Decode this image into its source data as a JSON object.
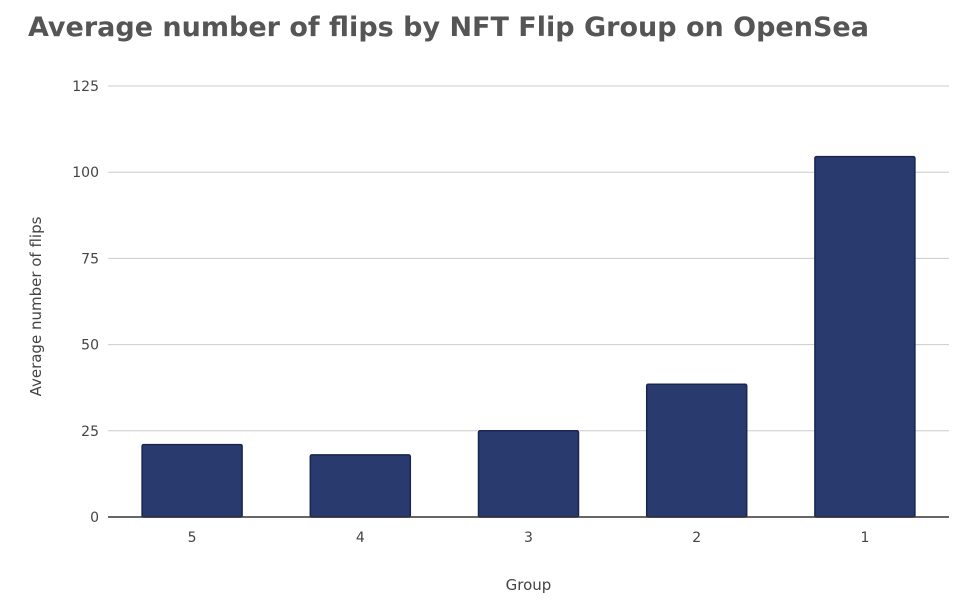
{
  "chart_data": {
    "type": "bar",
    "title": "Average number of flips by NFT Flip Group on OpenSea",
    "xlabel": "Group",
    "ylabel": "Average number of flips",
    "categories": [
      "5",
      "4",
      "3",
      "2",
      "1"
    ],
    "values": [
      21,
      18,
      25,
      38.5,
      104.5
    ],
    "ylim": [
      0,
      125
    ],
    "yticks": [
      0,
      25,
      50,
      75,
      100,
      125
    ],
    "grid": true,
    "legend": "none",
    "colors": {
      "bar": "#283a6e",
      "bar_border": "#1a2550"
    }
  }
}
